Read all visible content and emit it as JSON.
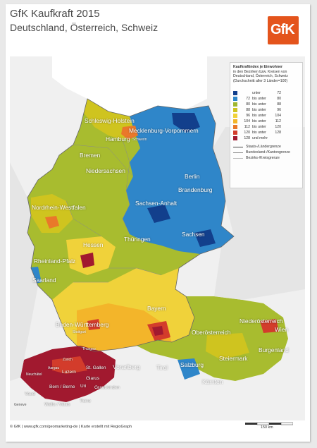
{
  "title": "GfK Kaufkraft 2015",
  "subtitle": "Deutschland, Österreich, Schweiz",
  "logo": "GfK",
  "legend": {
    "title": "Kaufkraftindex je Einwohner",
    "subtitle": "in den Bezirken bzw. Kreisen von Deutschland, Österreich, Schweiz (Durchschnitt aller 3 Länder=100)",
    "classes": [
      {
        "from": "",
        "to_label": "unter",
        "to": "72",
        "color": "#123f8c"
      },
      {
        "from": "72",
        "to_label": "bis unter",
        "to": "80",
        "color": "#2f86c9"
      },
      {
        "from": "80",
        "to_label": "bis unter",
        "to": "88",
        "color": "#9fb72f"
      },
      {
        "from": "88",
        "to_label": "bis unter",
        "to": "96",
        "color": "#cfc41f"
      },
      {
        "from": "96",
        "to_label": "bis unter",
        "to": "104",
        "color": "#f0d23a"
      },
      {
        "from": "104",
        "to_label": "bis unter",
        "to": "112",
        "color": "#f3b52a"
      },
      {
        "from": "112",
        "to_label": "bis unter",
        "to": "120",
        "color": "#e9782a"
      },
      {
        "from": "120",
        "to_label": "bis unter",
        "to": "128",
        "color": "#d33c2b"
      },
      {
        "from": "128",
        "to_label": "und mehr",
        "to": "",
        "color": "#a1192f"
      }
    ],
    "lines": [
      {
        "label": "Staats-/Ländergrenze",
        "style": "solid-dark"
      },
      {
        "label": "Bundesland-/Kantongrenze",
        "style": "solid-grey"
      },
      {
        "label": "Bezirks-/Kreisgrenze",
        "style": "thin-light"
      }
    ]
  },
  "regions": [
    "Schleswig-Holstein",
    "Mecklenburg-Vorpommern",
    "Hamburg",
    "Bremen",
    "Niedersachsen",
    "Berlin",
    "Brandenburg",
    "Nordrhein-Westfalen",
    "Sachsen-Anhalt",
    "Sachsen",
    "Thüringen",
    "Hessen",
    "Rheinland-Pfalz",
    "Saarland",
    "Bayern",
    "Baden-Württemberg",
    "Niederösterreich",
    "Wien",
    "Oberösterreich",
    "Burgenland",
    "Steiermark",
    "Salzburg",
    "Tirol",
    "Vorarlberg",
    "Kärnten",
    "Thurgau",
    "St. Gallen",
    "Zürich",
    "Aargau",
    "Luzern",
    "Glarus",
    "Bern / Berne",
    "Uri",
    "Graubünden",
    "Wallis / Valais",
    "Ticino",
    "Neuchâtel",
    "Vaud"
  ],
  "cities": [
    "Schwerin",
    "Stuttgart",
    "Geneve"
  ],
  "footer": "© GfK | www.gfk.com/geomarketing-de | Karte erstellt mit RegioGraph",
  "scale": "150 km"
}
